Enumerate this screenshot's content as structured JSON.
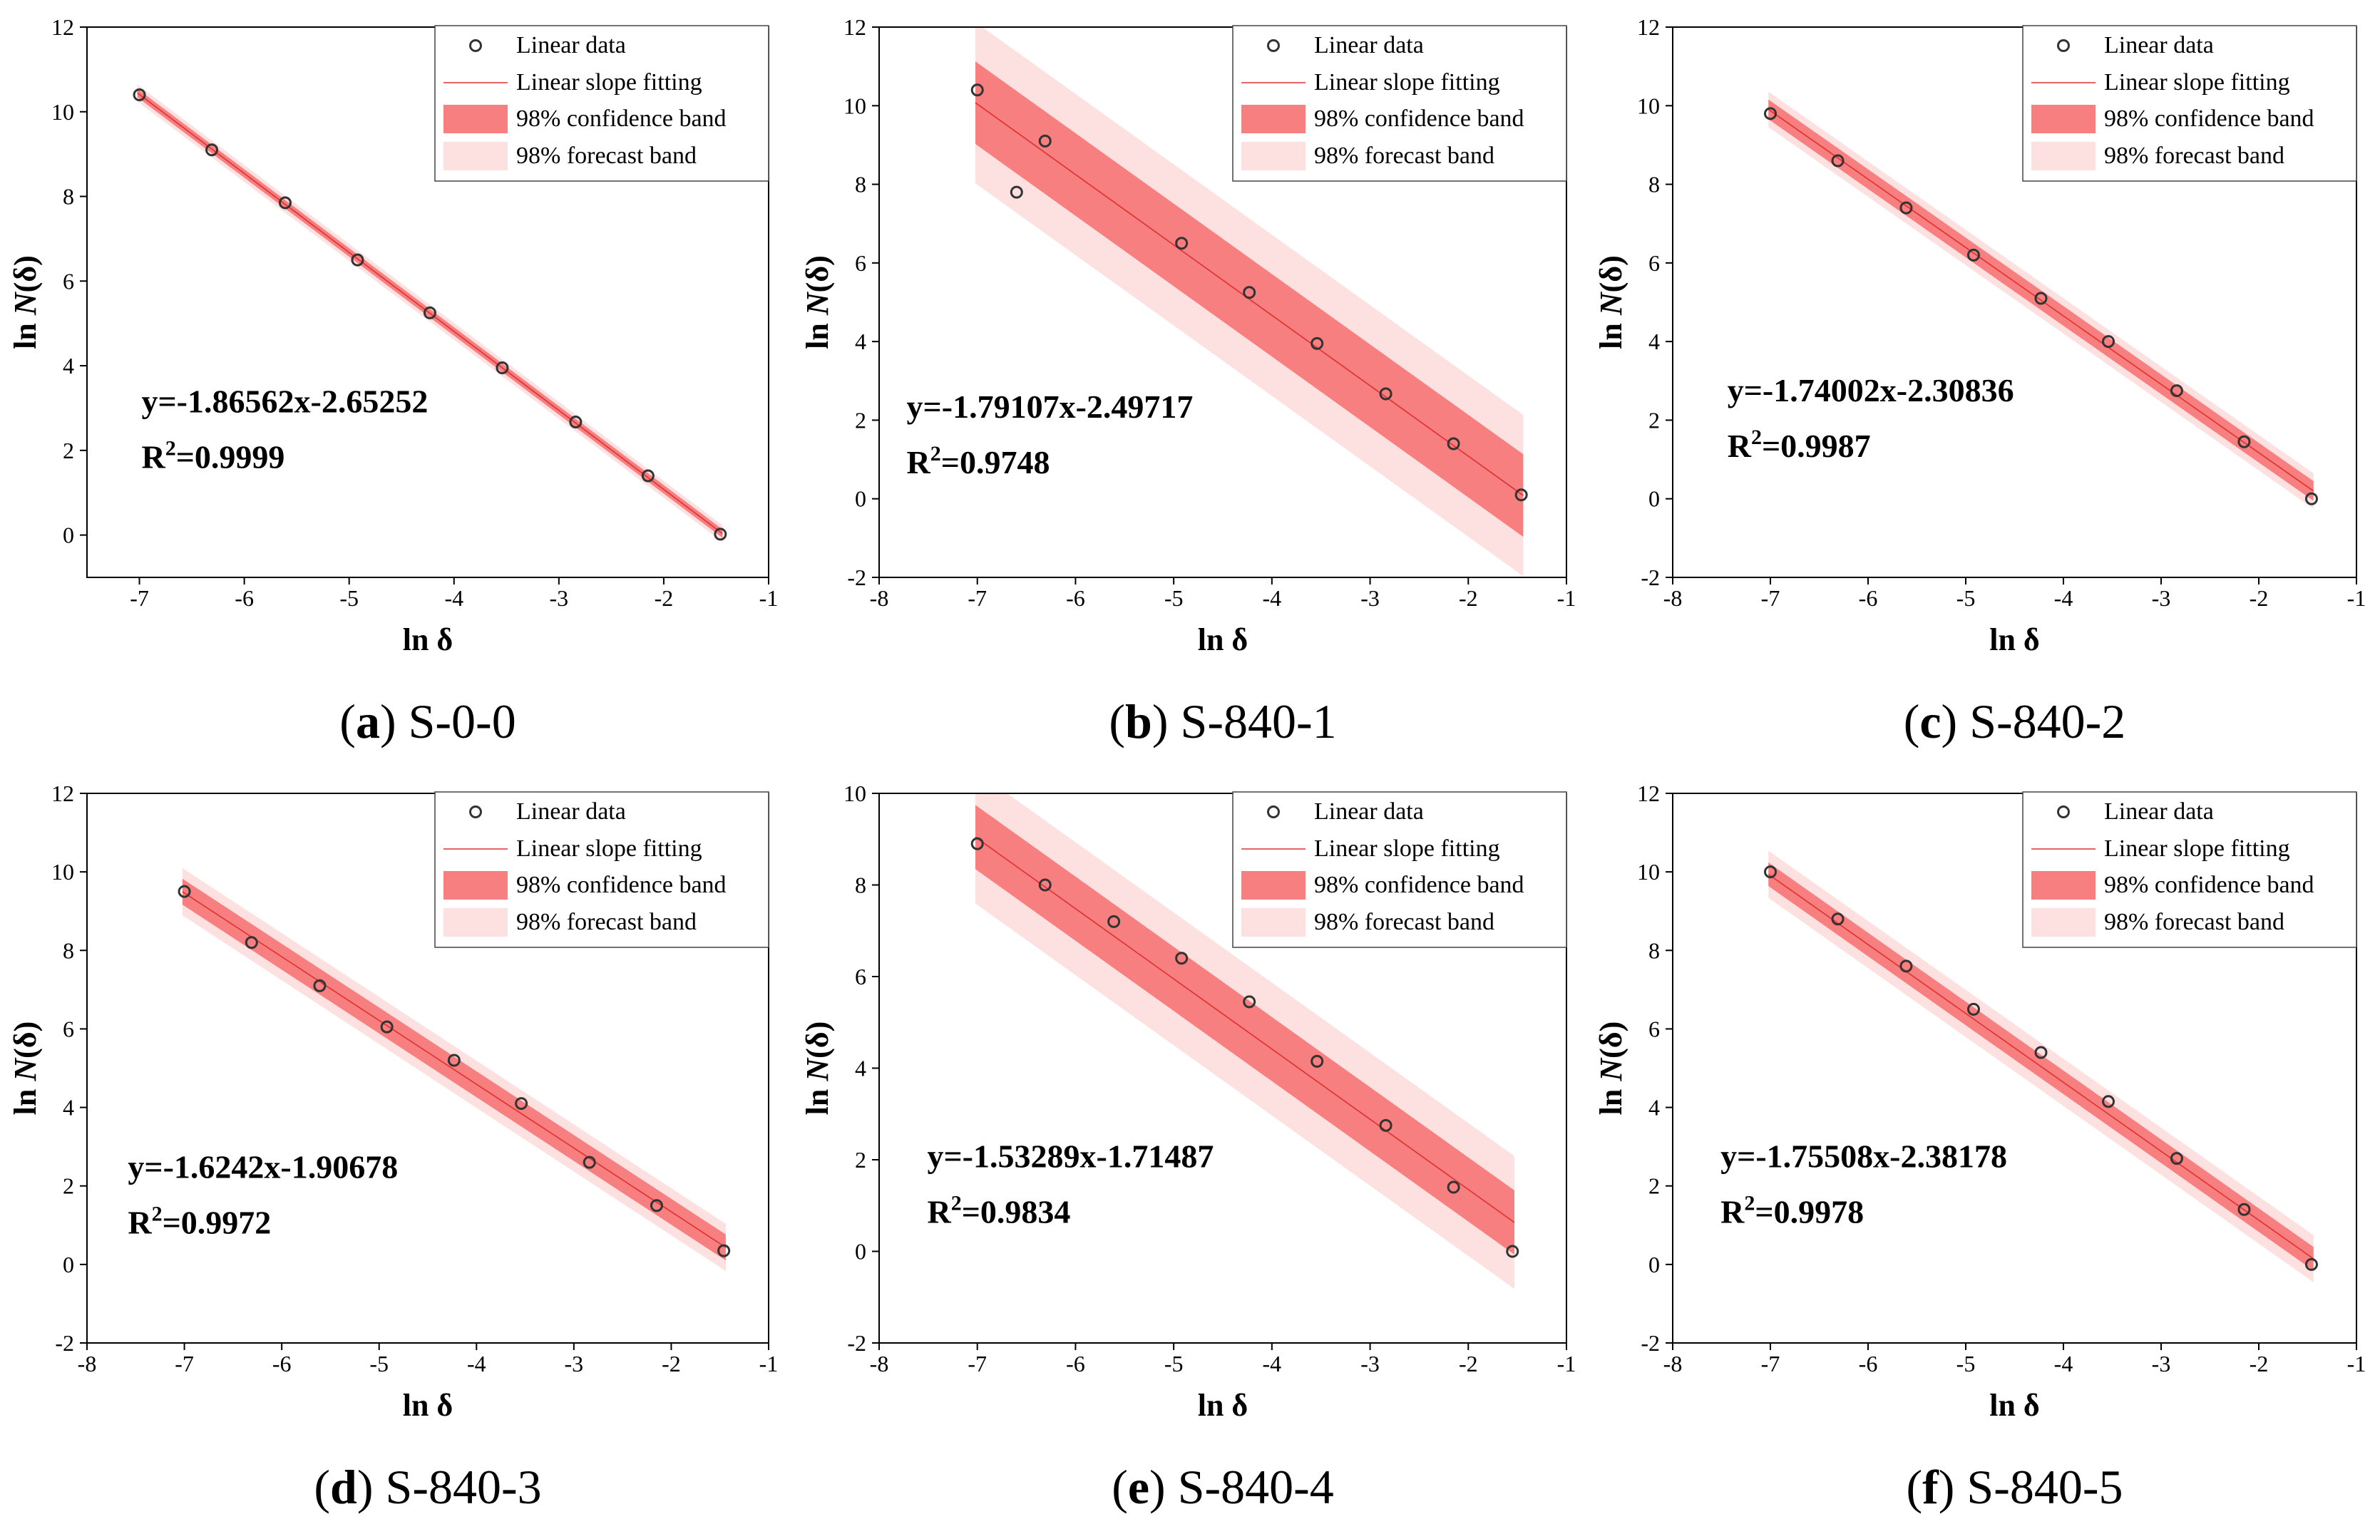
{
  "legend": {
    "data": "Linear data",
    "fit": "Linear slope fitting",
    "conf": "98% confidence band",
    "fore": "98% forecast band"
  },
  "axis": {
    "xlabel": "ln δ",
    "ylabel_prefix": "ln ",
    "ylabel_italic": "N",
    "ylabel_suffix": "(δ)"
  },
  "colors": {
    "conf_band": "#f77f7f",
    "forecast_band": "#fde0e0",
    "fit_line": "#e03030",
    "marker_edge": "#333333",
    "axis": "#000000"
  },
  "chart_data": [
    {
      "type": "scatter",
      "panel_letter": "a",
      "panel_name": "S-0-0",
      "equation": "y=-1.86562x-2.65252",
      "r2_prefix": "R",
      "r2_sup": "2",
      "r2_value": "=0.9999",
      "slope": -1.86562,
      "intercept": -2.65252,
      "x": [
        -7.0,
        -6.31,
        -5.61,
        -4.92,
        -4.23,
        -3.54,
        -2.84,
        -2.15,
        -1.46
      ],
      "y": [
        10.4,
        9.1,
        7.85,
        6.5,
        5.25,
        3.95,
        2.67,
        1.4,
        0.02
      ],
      "conf_halfwidth": 0.1,
      "forecast_halfwidth": 0.2,
      "xlim": [
        -7.5,
        -1.0
      ],
      "ylim": [
        -1,
        12
      ],
      "xticks": [
        -7,
        -6,
        -5,
        -4,
        -3,
        -2,
        -1
      ],
      "yticks": [
        0,
        2,
        4,
        6,
        8,
        10,
        12
      ]
    },
    {
      "type": "scatter",
      "panel_letter": "b",
      "panel_name": "S-840-1",
      "equation": "y=-1.79107x-2.49717",
      "r2_prefix": "R",
      "r2_sup": "2",
      "r2_value": "=0.9748",
      "slope": -1.79107,
      "intercept": -2.49717,
      "x": [
        -7.0,
        -6.6,
        -6.31,
        -4.92,
        -4.23,
        -3.54,
        -2.84,
        -2.15,
        -1.46
      ],
      "y": [
        10.4,
        7.8,
        9.1,
        6.5,
        5.25,
        3.95,
        2.67,
        1.4,
        0.1
      ],
      "conf_halfwidth": 1.05,
      "forecast_halfwidth": 2.05,
      "xlim": [
        -8,
        -1
      ],
      "ylim": [
        -2,
        12
      ],
      "xticks": [
        -8,
        -7,
        -6,
        -5,
        -4,
        -3,
        -2,
        -1
      ],
      "yticks": [
        -2,
        0,
        2,
        4,
        6,
        8,
        10,
        12
      ]
    },
    {
      "type": "scatter",
      "panel_letter": "c",
      "panel_name": "S-840-2",
      "equation": "y=-1.74002x-2.30836",
      "r2_prefix": "R",
      "r2_sup": "2",
      "r2_value": "=0.9987",
      "slope": -1.74002,
      "intercept": -2.30836,
      "x": [
        -7.0,
        -6.31,
        -5.61,
        -4.92,
        -4.23,
        -3.54,
        -2.84,
        -2.15,
        -1.46
      ],
      "y": [
        9.8,
        8.6,
        7.4,
        6.2,
        5.1,
        4.0,
        2.75,
        1.45,
        0.0
      ],
      "conf_halfwidth": 0.25,
      "forecast_halfwidth": 0.45,
      "xlim": [
        -8,
        -1
      ],
      "ylim": [
        -2,
        12
      ],
      "xticks": [
        -8,
        -7,
        -6,
        -5,
        -4,
        -3,
        -2,
        -1
      ],
      "yticks": [
        -2,
        0,
        2,
        4,
        6,
        8,
        10,
        12
      ]
    },
    {
      "type": "scatter",
      "panel_letter": "d",
      "panel_name": "S-840-3",
      "equation": "y=-1.6242x-1.90678",
      "r2_prefix": "R",
      "r2_sup": "2",
      "r2_value": "=0.9972",
      "slope": -1.6242,
      "intercept": -1.90678,
      "x": [
        -7.0,
        -6.31,
        -5.61,
        -4.92,
        -4.23,
        -3.54,
        -2.84,
        -2.15,
        -1.46
      ],
      "y": [
        9.5,
        8.2,
        7.1,
        6.05,
        5.2,
        4.1,
        2.6,
        1.5,
        0.35
      ],
      "conf_halfwidth": 0.33,
      "forecast_halfwidth": 0.6,
      "xlim": [
        -8,
        -1
      ],
      "ylim": [
        -2,
        12
      ],
      "xticks": [
        -8,
        -7,
        -6,
        -5,
        -4,
        -3,
        -2,
        -1
      ],
      "yticks": [
        -2,
        0,
        2,
        4,
        6,
        8,
        10,
        12
      ]
    },
    {
      "type": "scatter",
      "panel_letter": "e",
      "panel_name": "S-840-4",
      "equation": "y=-1.53289x-1.71487",
      "r2_prefix": "R",
      "r2_sup": "2",
      "r2_value": "=0.9834",
      "slope": -1.53289,
      "intercept": -1.71487,
      "x": [
        -7.0,
        -6.31,
        -5.61,
        -4.92,
        -4.23,
        -3.54,
        -2.84,
        -2.15,
        -1.55
      ],
      "y": [
        8.9,
        8.0,
        7.2,
        6.4,
        5.45,
        4.15,
        2.75,
        1.4,
        0.0
      ],
      "conf_halfwidth": 0.7,
      "forecast_halfwidth": 1.45,
      "xlim": [
        -8,
        -1
      ],
      "ylim": [
        -2,
        10
      ],
      "xticks": [
        -8,
        -7,
        -6,
        -5,
        -4,
        -3,
        -2,
        -1
      ],
      "yticks": [
        -2,
        0,
        2,
        4,
        6,
        8,
        10
      ]
    },
    {
      "type": "scatter",
      "panel_letter": "f",
      "panel_name": "S-840-5",
      "equation": "y=-1.75508x-2.38178",
      "r2_prefix": "R",
      "r2_sup": "2",
      "r2_value": "=0.9978",
      "slope": -1.75508,
      "intercept": -2.38178,
      "x": [
        -7.0,
        -6.31,
        -5.61,
        -4.92,
        -4.23,
        -3.54,
        -2.84,
        -2.15,
        -1.46
      ],
      "y": [
        10.0,
        8.8,
        7.6,
        6.5,
        5.4,
        4.15,
        2.7,
        1.4,
        0.0
      ],
      "conf_halfwidth": 0.3,
      "forecast_halfwidth": 0.6,
      "xlim": [
        -8,
        -1
      ],
      "ylim": [
        -2,
        12
      ],
      "xticks": [
        -8,
        -7,
        -6,
        -5,
        -4,
        -3,
        -2,
        -1
      ],
      "yticks": [
        -2,
        0,
        2,
        4,
        6,
        8,
        10,
        12
      ]
    }
  ]
}
